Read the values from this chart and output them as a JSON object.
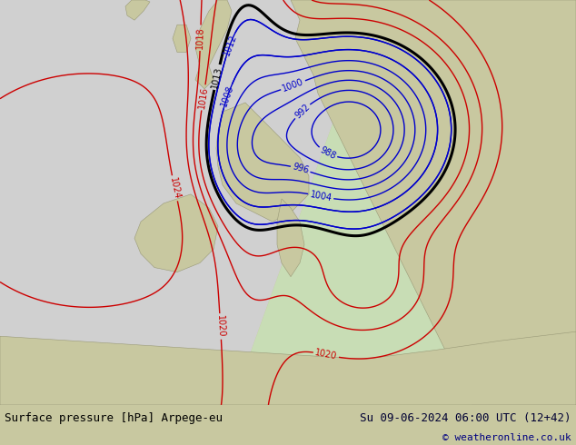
{
  "title_left": "Surface pressure [hPa] Arpege-eu",
  "title_right": "Su 09-06-2024 06:00 UTC (12+42)",
  "copyright": "© weatheronline.co.uk",
  "bg_land_color": "#c8c8a0",
  "grey_zone_color": "#d0d0d0",
  "green_zone_color": "#c8ddb5",
  "footer_bg": "#ffffff",
  "text_color_left": "#000000",
  "text_color_right": "#000033",
  "copyright_color": "#000080",
  "footer_fontsize": 9,
  "contour_blue_color": "#0000cc",
  "contour_red_color": "#cc0000",
  "contour_black_color": "#000000",
  "contour_lw_thin": 1.0,
  "contour_lw_thick": 2.2,
  "label_fontsize": 7
}
